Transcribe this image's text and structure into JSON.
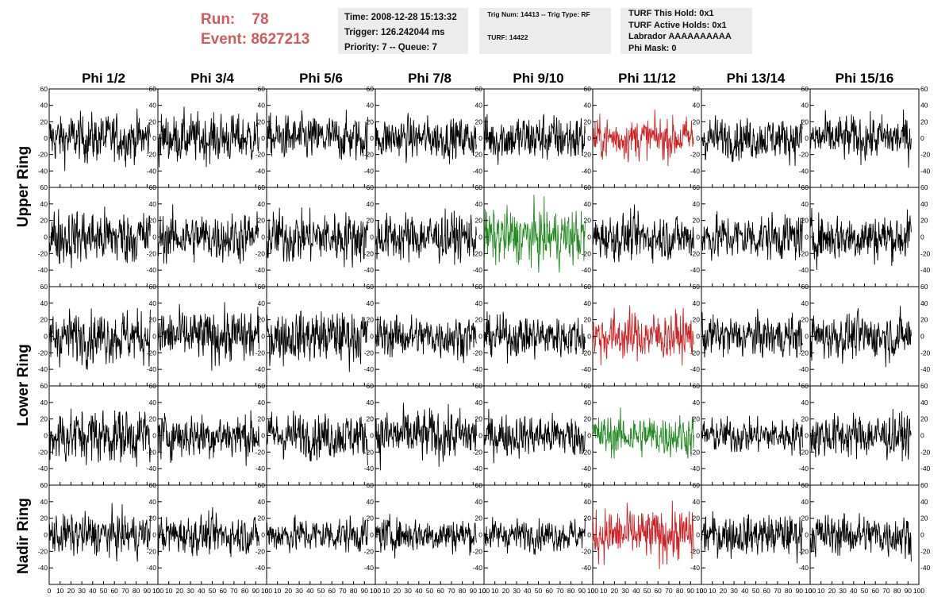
{
  "header": {
    "run_label": "Run:",
    "run_value": "78",
    "event_label": "Event:",
    "event_value": "8627213",
    "time": "Time: 2008-12-28 15:13:32",
    "trigger": "Trigger: 126.242044 ms",
    "priority": "Priority: 7 -- Queue: 7",
    "trig_num": "Trig Num: 14413 -- Trig Type: RF",
    "turf": "TURF: 14422",
    "turf_this_hold": "TURF This Hold: 0x1",
    "turf_active_holds": "TURF Active Holds: 0x1",
    "labrador": "Labrador AAAAAAAAAA",
    "phi_mask": "Phi Mask: 0"
  },
  "chart_data": {
    "type": "line",
    "columns": [
      "Phi 1/2",
      "Phi 3/4",
      "Phi 5/6",
      "Phi 7/8",
      "Phi 9/10",
      "Phi 11/12",
      "Phi 13/14",
      "Phi 15/16"
    ],
    "rows": [
      {
        "label": "Upper Ring",
        "rows": 2
      },
      {
        "label": "Lower Ring",
        "rows": 2
      },
      {
        "label": "Nadir Ring",
        "rows": 1
      }
    ],
    "xlim": [
      0,
      100
    ],
    "x_ticks": [
      0,
      10,
      20,
      30,
      40,
      50,
      60,
      70,
      80,
      90,
      100
    ],
    "ylim": [
      -60,
      60
    ],
    "y_ticks": [
      -40,
      -20,
      0,
      20,
      40,
      60
    ],
    "samples": 260,
    "x_range": [
      0,
      93
    ],
    "colors": {
      "default": "#000000",
      "red": "#cc2222",
      "green": "#228822"
    },
    "highlight": [
      {
        "row": 0,
        "col": 5,
        "color": "red"
      },
      {
        "row": 1,
        "col": 4,
        "color": "green"
      },
      {
        "row": 2,
        "col": 5,
        "color": "red"
      },
      {
        "row": 3,
        "col": 5,
        "color": "green"
      },
      {
        "row": 4,
        "col": 5,
        "color": "red"
      }
    ],
    "amplitude_grid": [
      [
        14,
        14,
        13,
        12,
        14,
        12,
        12,
        13
      ],
      [
        16,
        14,
        15,
        14,
        16,
        13,
        13,
        14
      ],
      [
        15,
        15,
        15,
        12,
        12,
        14,
        12,
        13
      ],
      [
        16,
        13,
        13,
        15,
        12,
        12,
        10,
        13
      ],
      [
        12,
        11,
        10,
        10,
        9,
        15,
        12,
        12
      ]
    ]
  }
}
